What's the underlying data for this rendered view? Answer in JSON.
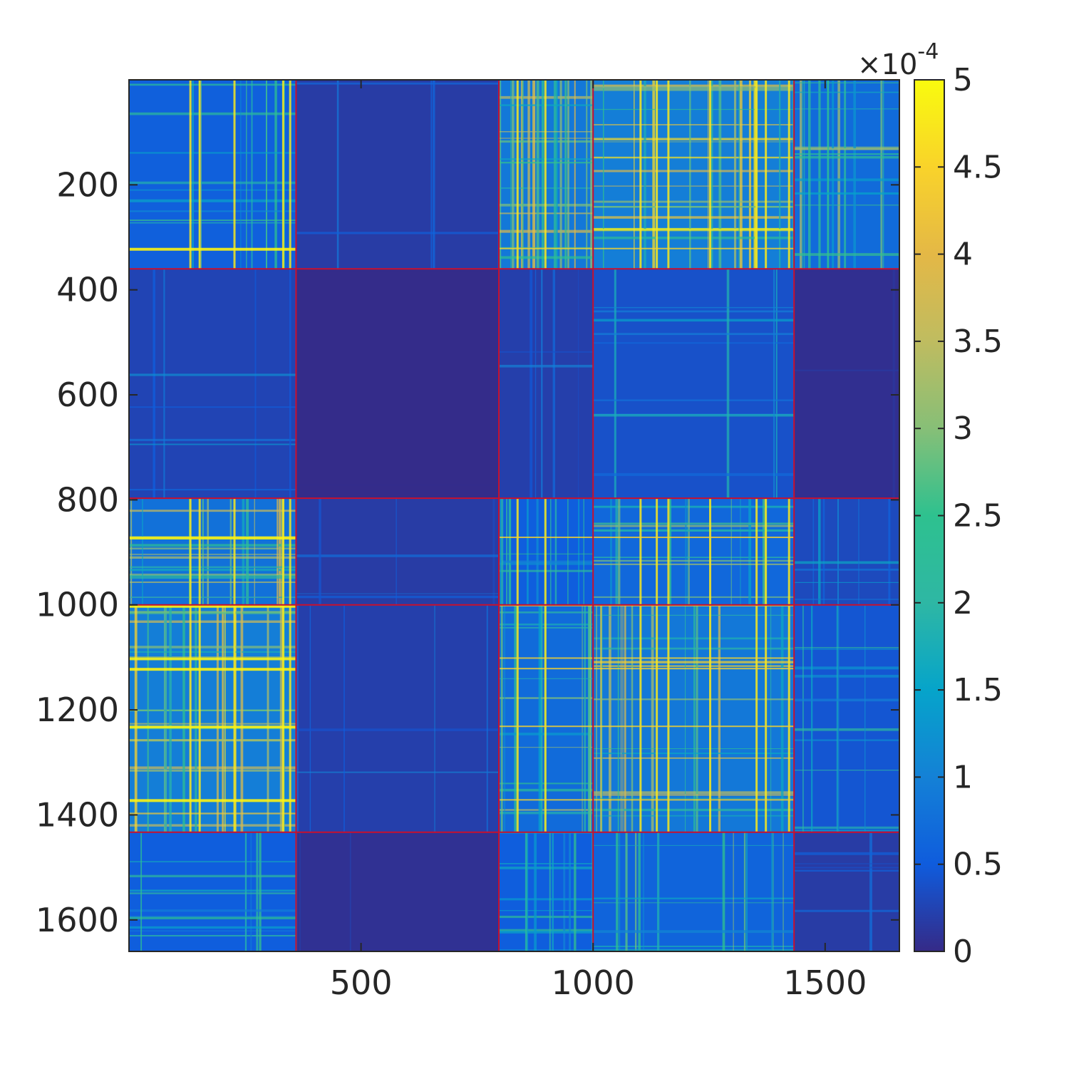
{
  "chart_data": {
    "type": "heatmap",
    "title": "",
    "xlabel": "",
    "ylabel": "",
    "matrix_size": 1660,
    "xlim": [
      0,
      1660
    ],
    "ylim": [
      0,
      1660
    ],
    "y_reversed": true,
    "x_ticks": [
      500,
      1000,
      1500
    ],
    "x_tick_labels": [
      "500",
      "1000",
      "1500"
    ],
    "y_ticks": [
      200,
      400,
      600,
      800,
      1000,
      1200,
      1400,
      1600
    ],
    "y_tick_labels": [
      "200",
      "400",
      "600",
      "800",
      "1000",
      "1200",
      "1400",
      "1600"
    ],
    "block_boundaries": [
      360,
      797,
      1000,
      1433
    ],
    "block_boundary_color": "#c8102e",
    "background_color": "#352a87",
    "colorbar": {
      "min": 0,
      "max": 5,
      "ticks": [
        0,
        0.5,
        1,
        1.5,
        2,
        2.5,
        3,
        3.5,
        4,
        4.5,
        5
      ],
      "tick_labels": [
        "0",
        "0.5",
        "1",
        "1.5",
        "2",
        "2.5",
        "3",
        "3.5",
        "4",
        "4.5",
        "5"
      ],
      "multiplier_prefix": "×10",
      "multiplier_exponent": "-4",
      "colormap": "parula"
    },
    "block_intensity": [
      [
        0.32,
        0.1,
        0.5,
        0.55,
        0.4
      ],
      [
        0.15,
        0.01,
        0.12,
        0.22,
        0.03
      ],
      [
        0.45,
        0.1,
        0.3,
        0.38,
        0.18
      ],
      [
        0.55,
        0.12,
        0.4,
        0.5,
        0.25
      ],
      [
        0.3,
        0.04,
        0.3,
        0.35,
        0.1
      ]
    ],
    "hot_columns": [
      130,
      150,
      225,
      330,
      345,
      835,
      895,
      1100,
      1135,
      1160,
      1250,
      1350,
      1370,
      1420
    ],
    "hot_rows": [
      320,
      870,
      1000,
      1100,
      1120,
      1230,
      1370
    ]
  }
}
